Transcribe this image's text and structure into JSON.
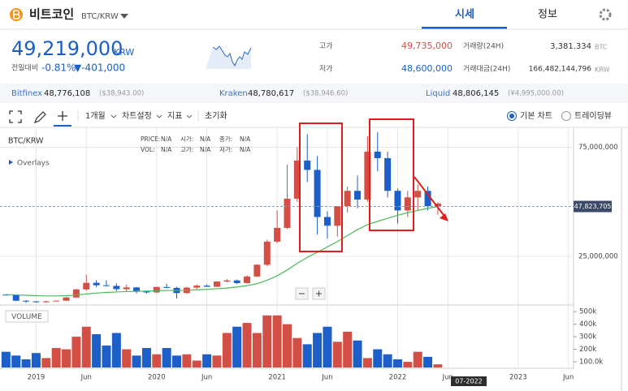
{
  "header": {
    "title": "비트코인",
    "pair": "BTC/KRW",
    "tabs": [
      "시세",
      "정보"
    ]
  },
  "ticker": {
    "price": "49,219,000",
    "currency": "KRW",
    "change_label": "전일대비",
    "change_pct": "-0.81%",
    "change_abs": "▼-401,000",
    "stats": [
      {
        "label": "고가",
        "value": "49,735,000"
      },
      {
        "label": "저가",
        "value": "48,600,000"
      },
      {
        "label": "거래량(24H)",
        "value": "3,381.334",
        "unit": "BTC"
      },
      {
        "label": "거래대금(24H)",
        "value": "166,482,144,796",
        "unit": "KRW"
      }
    ]
  },
  "exchanges": [
    {
      "name": "Bitfinex",
      "price": "48,776,108",
      "quote": "($38,943.00)"
    },
    {
      "name": "Kraken",
      "price": "48,780,617",
      "quote": "($38,946.60)"
    },
    {
      "name": "Liquid",
      "price": "48,806,145",
      "quote": "(¥4,995,000.00)"
    }
  ],
  "toolbar": {
    "period": "1개월",
    "settings": "차트설정",
    "indicators": "지표",
    "reset": "초기화",
    "views": [
      "기본 차트",
      "트레이딩뷰"
    ]
  },
  "chart_data": {
    "type": "candlestick",
    "symbol": "BTC/KRW",
    "overlays": "Overlays",
    "volume_label": "VOLUME",
    "info": [
      [
        "PRICE:",
        "N/A",
        "시가:",
        "N/A",
        "종가:",
        "N/A"
      ],
      [
        "VOL:",
        "N/A",
        "고가:",
        "N/A",
        "저가:",
        "N/A"
      ]
    ],
    "x": [
      "2018-10",
      "2018-11",
      "2018-12",
      "2019-01",
      "2019-02",
      "2019-03",
      "2019-04",
      "2019-05",
      "2019-06",
      "2019-07",
      "2019-08",
      "2019-09",
      "2019-10",
      "2019-11",
      "2019-12",
      "2020-01",
      "2020-02",
      "2020-03",
      "2020-04",
      "2020-05",
      "2020-06",
      "2020-07",
      "2020-08",
      "2020-09",
      "2020-10",
      "2020-11",
      "2020-12",
      "2021-01",
      "2021-02",
      "2021-03",
      "2021-04",
      "2021-05",
      "2021-06",
      "2021-07",
      "2021-08",
      "2021-09",
      "2021-10",
      "2021-11",
      "2021-12",
      "2022-01",
      "2022-02",
      "2022-03",
      "2022-04",
      "2022-05"
    ],
    "open": [
      7400000,
      7200000,
      4600000,
      4300000,
      3900000,
      4300000,
      4600000,
      6100000,
      9800000,
      12800000,
      11700000,
      11400000,
      9900000,
      10700000,
      8900000,
      8400000,
      10900000,
      10500000,
      8100000,
      10600000,
      11500000,
      11000000,
      13400000,
      13900000,
      12700000,
      15700000,
      21100000,
      31700000,
      38000000,
      51400000,
      68900000,
      64600000,
      43000000,
      39000000,
      48000000,
      55000000,
      51000000,
      73000000,
      70000000,
      55000000,
      46000000,
      52000000,
      55000000,
      48000000
    ],
    "high": [
      7600000,
      7400000,
      4900000,
      4400000,
      4600000,
      4700000,
      6300000,
      10000000,
      16500000,
      14000000,
      14000000,
      12600000,
      12000000,
      10900000,
      9200000,
      11000000,
      12400000,
      11000000,
      11000000,
      12000000,
      12000000,
      13500000,
      14600000,
      14300000,
      16300000,
      21400000,
      32600000,
      46000000,
      67000000,
      75000000,
      81000000,
      71000000,
      45500000,
      48000000,
      57000000,
      62000000,
      80000000,
      82000000,
      73000000,
      56000000,
      55000000,
      58000000,
      57000000,
      49700000
    ],
    "low": [
      7000000,
      4400000,
      3600000,
      3800000,
      3800000,
      4300000,
      4600000,
      6000000,
      9300000,
      10800000,
      11200000,
      9000000,
      8900000,
      7900000,
      7800000,
      8100000,
      10300000,
      5600000,
      7700000,
      10000000,
      11000000,
      10900000,
      13000000,
      12300000,
      12500000,
      15500000,
      20400000,
      31000000,
      37500000,
      50000000,
      59000000,
      35000000,
      33000000,
      34000000,
      45000000,
      47000000,
      50000000,
      64000000,
      52000000,
      40000000,
      43000000,
      46000000,
      46000000,
      44000000
    ],
    "close": [
      7200000,
      4600000,
      4300000,
      3900000,
      4300000,
      4600000,
      6100000,
      9800000,
      12800000,
      11700000,
      11400000,
      9900000,
      10700000,
      8900000,
      8400000,
      10900000,
      10500000,
      8100000,
      10600000,
      11500000,
      11000000,
      13400000,
      13900000,
      12700000,
      15700000,
      21100000,
      31700000,
      38000000,
      51400000,
      68900000,
      64600000,
      43000000,
      39000000,
      48000000,
      55000000,
      51000000,
      73000000,
      70000000,
      55000000,
      46000000,
      52000000,
      55000000,
      48000000,
      49200000
    ],
    "volume": [
      180000,
      150000,
      120000,
      170000,
      130000,
      210000,
      200000,
      300000,
      380000,
      320000,
      230000,
      330000,
      200000,
      150000,
      210000,
      160000,
      210000,
      150000,
      160000,
      110000,
      160000,
      150000,
      330000,
      380000,
      410000,
      330000,
      470000,
      470000,
      400000,
      290000,
      240000,
      330000,
      380000,
      260000,
      340000,
      270000,
      130000,
      200000,
      160000,
      120000,
      100000,
      180000,
      140000,
      80000
    ],
    "ma": {
      "color": "#4cbb5a",
      "values": [
        7400000,
        7300000,
        7100000,
        6900000,
        6800000,
        6800000,
        6900000,
        7200000,
        7700000,
        8100000,
        8400000,
        8600000,
        8800000,
        8900000,
        9000000,
        9200000,
        9300000,
        9300000,
        9400000,
        9600000,
        9800000,
        10100000,
        10400000,
        10900000,
        11500000,
        12400000,
        14000000,
        16000000,
        18700000,
        21800000,
        24500000,
        26800000,
        29300000,
        31700000,
        34500000,
        37200000,
        39500000,
        41000000,
        42400000,
        43800000,
        45000000,
        46000000,
        47000000,
        47800000
      ]
    },
    "up_color": "#d24f45",
    "down_color": "#1c5fc9",
    "grid": true,
    "xlim": [
      "2018-09",
      "2023-07"
    ],
    "xticks": [
      {
        "value": "2019-01",
        "label": "2019"
      },
      {
        "value": "2019-06",
        "label": "Jun"
      },
      {
        "value": "2020-01",
        "label": "2020"
      },
      {
        "value": "2020-06",
        "label": "Jun"
      },
      {
        "value": "2021-01",
        "label": "2021"
      },
      {
        "value": "2021-06",
        "label": "Jun"
      },
      {
        "value": "2022-01",
        "label": "2022"
      },
      {
        "value": "2022-06",
        "label": "Jun"
      },
      {
        "value": "2023-01",
        "label": "2023"
      },
      {
        "value": "2023-06",
        "label": "Jun"
      }
    ],
    "ylim": [
      3000000,
      83000000
    ],
    "yticks": [
      {
        "value": 75000000,
        "label": "75,000,000"
      },
      {
        "value": 25000000,
        "label": "25,000,000"
      }
    ],
    "last_price": {
      "value": 47823705,
      "label": "47,823,705"
    },
    "volume_ylim": [
      55000,
      540000
    ],
    "volume_yticks": [
      {
        "value": 500000,
        "label": "500k"
      },
      {
        "value": 400000,
        "label": "400k"
      },
      {
        "value": 300000,
        "label": "300k"
      },
      {
        "value": 200000,
        "label": "200k"
      },
      {
        "value": 100000,
        "label": "100.0k"
      }
    ],
    "cursor_label": "07-2022"
  }
}
